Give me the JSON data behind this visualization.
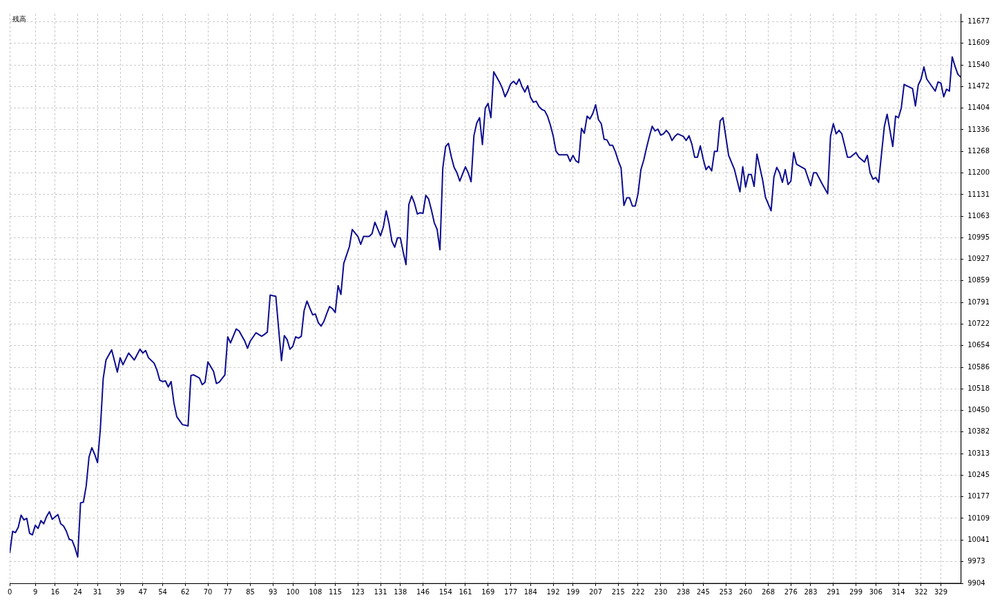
{
  "chart_data": {
    "type": "line",
    "title": "残高",
    "grid": true,
    "line_style": "solid",
    "marker": "none",
    "xlim": [
      0,
      336
    ],
    "ylim": [
      9904,
      11702
    ],
    "xticks": [
      0,
      9,
      16,
      24,
      31,
      39,
      47,
      54,
      62,
      70,
      77,
      85,
      93,
      100,
      108,
      115,
      123,
      131,
      138,
      146,
      154,
      161,
      169,
      177,
      184,
      192,
      199,
      207,
      215,
      222,
      230,
      238,
      245,
      253,
      260,
      268,
      276,
      283,
      291,
      299,
      306,
      314,
      322,
      329
    ],
    "yticks": [
      9904,
      9973,
      10041,
      10109,
      10177,
      10245,
      10313,
      10382,
      10450,
      10518,
      10586,
      10654,
      10722,
      10791,
      10859,
      10927,
      10995,
      11063,
      11131,
      11200,
      11268,
      11336,
      11404,
      11472,
      11540,
      11609,
      11677
    ],
    "series": [
      {
        "color": "#0c0c8f",
        "x": [
          0,
          1,
          2,
          3,
          4,
          5,
          6,
          7,
          8,
          9,
          10,
          11,
          12,
          13,
          14,
          15,
          17,
          18,
          19,
          20,
          21,
          22,
          23,
          24,
          25,
          26,
          27,
          28,
          29,
          30,
          31,
          32,
          33,
          34,
          36,
          38,
          39,
          40,
          42,
          44,
          46,
          47,
          48,
          49,
          51,
          52,
          53,
          54,
          55,
          56,
          57,
          58,
          59,
          61,
          63,
          64,
          65,
          67,
          68,
          69,
          70,
          72,
          73,
          74,
          76,
          77,
          78,
          80,
          81,
          83,
          84,
          85,
          87,
          89,
          90,
          91,
          92,
          94,
          95,
          96,
          97,
          98,
          99,
          100,
          101,
          102,
          103,
          104,
          105,
          106,
          107,
          108,
          109,
          110,
          111,
          112,
          113,
          114,
          115,
          116,
          117,
          118,
          120,
          121,
          123,
          124,
          125,
          127,
          128,
          129,
          130,
          131,
          132,
          133,
          134,
          135,
          136,
          137,
          138,
          139,
          140,
          141,
          142,
          143,
          144,
          145,
          146,
          147,
          148,
          149,
          150,
          151,
          152,
          153,
          154,
          155,
          156,
          157,
          158,
          159,
          161,
          162,
          163,
          164,
          165,
          166,
          167,
          168,
          169,
          170,
          171,
          173,
          174,
          175,
          176,
          177,
          178,
          179,
          180,
          181,
          182,
          183,
          184,
          185,
          186,
          187,
          188,
          189,
          190,
          191,
          192,
          193,
          194,
          195,
          197,
          198,
          199,
          200,
          201,
          202,
          203,
          204,
          205,
          206,
          207,
          208,
          209,
          210,
          211,
          212,
          213,
          214,
          215,
          216,
          217,
          218,
          219,
          220,
          221,
          222,
          223,
          224,
          225,
          226,
          227,
          228,
          229,
          230,
          231,
          232,
          233,
          234,
          235,
          236,
          238,
          239,
          240,
          241,
          242,
          243,
          244,
          245,
          246,
          247,
          248,
          249,
          250,
          251,
          252,
          254,
          256,
          258,
          259,
          260,
          261,
          262,
          263,
          264,
          266,
          267,
          269,
          270,
          271,
          272,
          273,
          274,
          275,
          276,
          277,
          278,
          280,
          281,
          283,
          284,
          285,
          287,
          289,
          290,
          291,
          292,
          293,
          294,
          296,
          297,
          299,
          300,
          302,
          303,
          304,
          305,
          306,
          307,
          309,
          310,
          312,
          313,
          314,
          315,
          316,
          319,
          320,
          321,
          322,
          323,
          324,
          327,
          328,
          329,
          330,
          331,
          332,
          333,
          334,
          335,
          336
        ],
        "values": [
          10000,
          10068,
          10064,
          10081,
          10119,
          10104,
          10109,
          10062,
          10057,
          10087,
          10077,
          10102,
          10092,
          10115,
          10130,
          10106,
          10121,
          10092,
          10085,
          10068,
          10043,
          10040,
          10017,
          9987,
          10158,
          10160,
          10211,
          10303,
          10332,
          10311,
          10285,
          10392,
          10550,
          10609,
          10641,
          10571,
          10616,
          10594,
          10631,
          10609,
          10643,
          10631,
          10639,
          10616,
          10599,
          10577,
          10545,
          10541,
          10543,
          10524,
          10541,
          10473,
          10430,
          10405,
          10401,
          10560,
          10562,
          10552,
          10531,
          10539,
          10603,
          10573,
          10535,
          10539,
          10562,
          10682,
          10663,
          10707,
          10701,
          10669,
          10646,
          10669,
          10695,
          10684,
          10690,
          10697,
          10814,
          10810,
          10707,
          10607,
          10686,
          10673,
          10643,
          10652,
          10682,
          10678,
          10684,
          10765,
          10795,
          10773,
          10752,
          10754,
          10727,
          10716,
          10731,
          10756,
          10778,
          10771,
          10759,
          10844,
          10816,
          10914,
          10967,
          11021,
          10999,
          10974,
          10999,
          10999,
          11008,
          11044,
          11023,
          11001,
          11029,
          11080,
          11040,
          10984,
          10965,
          10995,
          10995,
          10950,
          10910,
          11100,
          11127,
          11104,
          11070,
          11074,
          11072,
          11129,
          11117,
          11082,
          11042,
          11021,
          10957,
          11215,
          11283,
          11293,
          11251,
          11217,
          11200,
          11174,
          11219,
          11200,
          11172,
          11317,
          11357,
          11374,
          11289,
          11404,
          11419,
          11374,
          11519,
          11487,
          11468,
          11440,
          11458,
          11481,
          11489,
          11479,
          11496,
          11472,
          11455,
          11475,
          11438,
          11423,
          11426,
          11409,
          11400,
          11396,
          11379,
          11351,
          11317,
          11268,
          11257,
          11257,
          11257,
          11236,
          11255,
          11238,
          11232,
          11340,
          11325,
          11379,
          11370,
          11387,
          11415,
          11368,
          11355,
          11306,
          11304,
          11287,
          11287,
          11266,
          11238,
          11215,
          11097,
          11121,
          11121,
          11095,
          11095,
          11134,
          11210,
          11240,
          11279,
          11315,
          11347,
          11332,
          11338,
          11319,
          11323,
          11334,
          11323,
          11302,
          11315,
          11323,
          11315,
          11302,
          11317,
          11291,
          11249,
          11249,
          11285,
          11244,
          11210,
          11221,
          11206,
          11268,
          11268,
          11364,
          11374,
          11255,
          11212,
          11140,
          11219,
          11155,
          11195,
          11195,
          11157,
          11259,
          11178,
          11123,
          11080,
          11187,
          11217,
          11200,
          11170,
          11210,
          11163,
          11174,
          11264,
          11227,
          11217,
          11212,
          11159,
          11200,
          11200,
          11166,
          11134,
          11315,
          11355,
          11323,
          11334,
          11323,
          11249,
          11249,
          11264,
          11249,
          11234,
          11255,
          11200,
          11180,
          11185,
          11170,
          11345,
          11385,
          11283,
          11379,
          11374,
          11404,
          11479,
          11466,
          11411,
          11477,
          11496,
          11534,
          11496,
          11458,
          11487,
          11483,
          11440,
          11464,
          11458,
          11566,
          11536,
          11511,
          11502
        ]
      }
    ]
  }
}
